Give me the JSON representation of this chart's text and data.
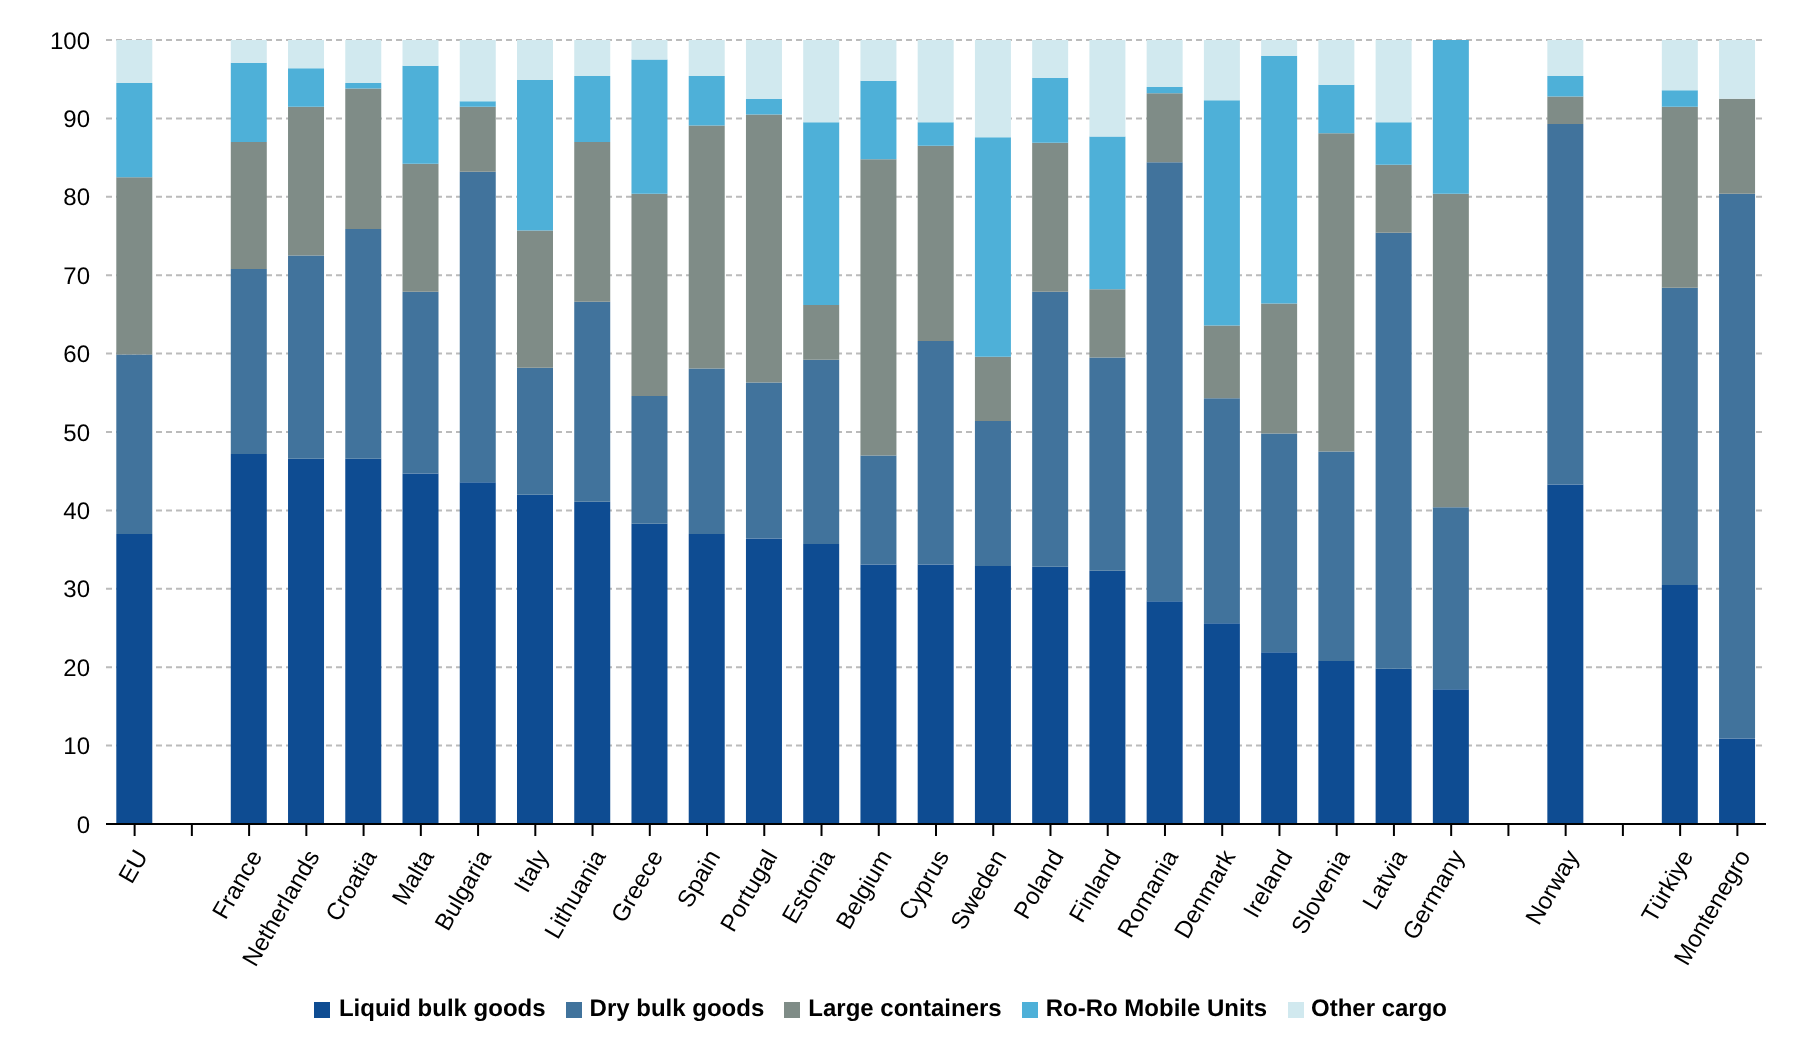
{
  "chart_data": {
    "type": "bar",
    "stacked": true,
    "categories": [
      "EU",
      null,
      "France",
      "Netherlands",
      "Croatia",
      "Malta",
      "Bulgaria",
      "Italy",
      "Lithuania",
      "Greece",
      "Spain",
      "Portugal",
      "Estonia",
      "Belgium",
      "Cyprus",
      "Sweden",
      "Poland",
      "Finland",
      "Romania",
      "Denmark",
      "Ireland",
      "Slovenia",
      "Latvia",
      "Germany",
      null,
      "Norway",
      null,
      "Türkiye",
      "Montenegro"
    ],
    "series": [
      {
        "name": "Liquid bulk goods",
        "color": "#0e4c92",
        "values": [
          37.0,
          null,
          47.2,
          46.6,
          46.6,
          44.7,
          43.6,
          42.0,
          41.1,
          38.3,
          37.0,
          36.4,
          35.7,
          33.1,
          33.1,
          32.9,
          32.8,
          32.3,
          28.4,
          25.6,
          21.9,
          20.8,
          19.8,
          17.2,
          null,
          43.3,
          null,
          30.5,
          10.9
        ]
      },
      {
        "name": "Dry bulk goods",
        "color": "#41739c",
        "values": [
          22.9,
          null,
          23.6,
          25.9,
          29.3,
          23.2,
          39.6,
          16.2,
          25.5,
          16.3,
          21.1,
          19.9,
          23.5,
          13.9,
          28.5,
          18.5,
          35.1,
          27.2,
          56.0,
          28.7,
          27.9,
          26.7,
          55.6,
          23.2,
          null,
          46.0,
          null,
          37.9,
          69.5
        ]
      },
      {
        "name": "Large containers",
        "color": "#7f8c87",
        "values": [
          22.6,
          null,
          16.2,
          19.0,
          17.9,
          16.3,
          8.3,
          17.5,
          20.4,
          25.8,
          31.0,
          34.2,
          7.0,
          37.8,
          24.9,
          8.2,
          19.0,
          8.7,
          8.8,
          9.3,
          16.6,
          40.6,
          8.7,
          40.0,
          null,
          3.5,
          null,
          23.1,
          12.1
        ]
      },
      {
        "name": "Ro-Ro Mobile Units",
        "color": "#4eb0d8",
        "values": [
          12.0,
          null,
          10.1,
          4.9,
          0.7,
          12.5,
          0.7,
          19.2,
          8.4,
          17.1,
          6.3,
          2.0,
          23.3,
          10.0,
          3.0,
          28.0,
          8.3,
          19.5,
          0.8,
          28.7,
          31.6,
          6.2,
          5.4,
          19.6,
          null,
          2.6,
          null,
          2.1,
          0
        ]
      },
      {
        "name": "Other cargo",
        "color": "#d1e9ef",
        "values": [
          5.5,
          null,
          2.9,
          3.6,
          5.5,
          3.3,
          7.8,
          5.1,
          4.6,
          2.5,
          4.6,
          7.5,
          10.5,
          5.2,
          10.5,
          12.4,
          4.8,
          12.3,
          6.0,
          7.7,
          2.0,
          5.7,
          10.5,
          0,
          null,
          4.6,
          null,
          6.4,
          7.5
        ]
      }
    ],
    "ylim": [
      0,
      100
    ],
    "yticks": [
      0,
      10,
      20,
      30,
      40,
      50,
      60,
      70,
      80,
      90,
      100
    ],
    "grid": "y",
    "legend": "bottom"
  }
}
